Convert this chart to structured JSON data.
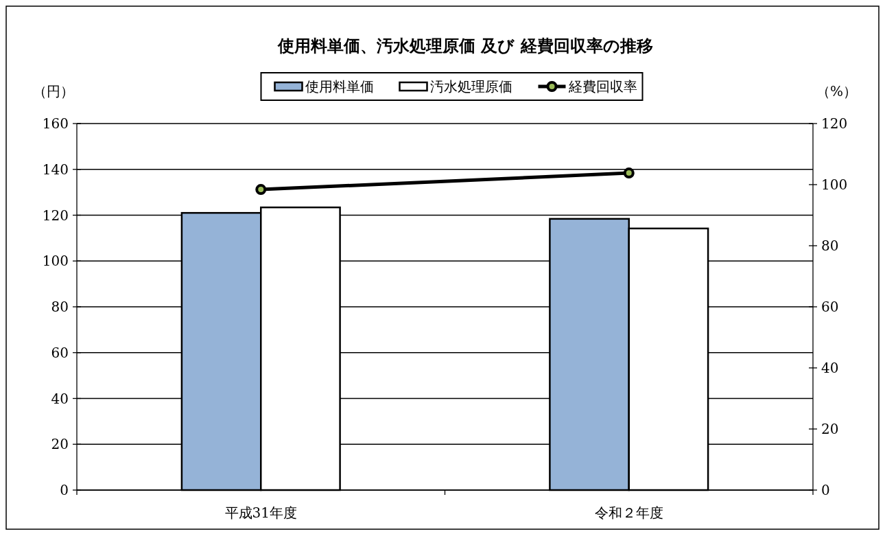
{
  "chart_data": {
    "type": "bar",
    "title": "使用料単価、汚水処理原価 及び 経費回収率の推移",
    "ylabel": "（円）",
    "y2label": "（%）",
    "categories": [
      "平成31年度",
      "令和２年度"
    ],
    "series": [
      {
        "name": "使用料単価",
        "color": "#95b3d7",
        "values": [
          121.0,
          118.4
        ]
      },
      {
        "name": "汚水処理原価",
        "color": "#ffffff",
        "values": [
          123.4,
          114.2
        ]
      },
      {
        "name": "経費回収率",
        "type": "line",
        "axis": "y2",
        "color": "#000000",
        "marker": "circle",
        "values": [
          98.4,
          103.8
        ]
      }
    ],
    "ylim": [
      0,
      160
    ],
    "yticks": [
      0,
      20,
      40,
      60,
      80,
      100,
      120,
      140,
      160
    ],
    "y2lim": [
      0,
      120
    ],
    "y2ticks": [
      0,
      20,
      40,
      60,
      80,
      100,
      120
    ],
    "grid": "y",
    "legend": "top"
  }
}
